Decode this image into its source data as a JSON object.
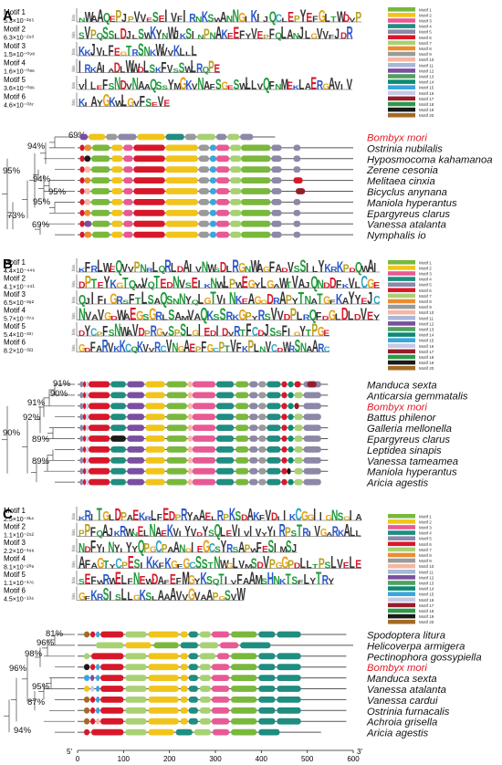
{
  "colors": {
    "m1": "#79b83c",
    "m2": "#f0c41b",
    "m3": "#e85a94",
    "m4": "#1f8d80",
    "m5": "#8d88a8",
    "m6": "#d7182a",
    "m7": "#a8d174",
    "m8": "#eb8d2f",
    "m9": "#9a9a9a",
    "m10": "#f3b7a3",
    "m11": "#a7b8d8",
    "m12": "#7b4fa0",
    "m13": "#4fa05e",
    "m14": "#0c8b73",
    "m15": "#3ba5dc",
    "m16": "#c6c9e6",
    "m17": "#951d2c",
    "m18": "#2c9a4a",
    "m19": "#1a1a1a",
    "m20": "#a36a25",
    "highlight": "#e01b24",
    "backbone": "#555555"
  },
  "axis": {
    "ticks": [
      "0",
      "100",
      "200",
      "300",
      "400",
      "500",
      "600"
    ],
    "prime5": "5'",
    "prime3": "3'"
  },
  "panels": [
    {
      "letter": "A",
      "legend": [
        "Motif 1",
        "Motif 2",
        "Motif 3",
        "Motif 4",
        "Motif 5",
        "Motif 6",
        "Motif 7",
        "Motif 8",
        "Motif 9",
        "Motif 10",
        "Motif 11",
        "Motif 12",
        "Motif 13",
        "Motif 14",
        "Motif 15",
        "Motif 16",
        "Motif 17",
        "Motif 18",
        "Motif 19",
        "Motif 20"
      ],
      "motifs": [
        {
          "name": "Motif 1",
          "evalue": "5.3×10⁻²⁶⁵",
          "logo": "NWAAQEPJPVVESEIVFIRNKSWANNGIKIJQCLEPYEFGLTWDVP",
          "width": 0.62
        },
        {
          "name": "Motif 2",
          "evalue": "6.3×10⁻²⁵³",
          "logo": "SVPQSSLDJLSWKYNWJKSINPNAKEEFYVEPFQLANJLGVVFJDR",
          "width": 0.6
        },
        {
          "name": "Motif 3",
          "evalue": "1.5×10⁻⁰⁹⁸",
          "logo": "KKJVLFEGTRSNKWVVKLLL",
          "width": 0.26
        },
        {
          "name": "Motif 4",
          "evalue": "1.6×10⁻⁰⁸⁶",
          "logo": "IRKAIADLWWDLSKFVSSWLRQPE",
          "width": 0.31
        },
        {
          "name": "Motif 5",
          "evalue": "3.6×10⁻⁰⁸⁶",
          "logo": "VILEFSNDVNAAQSSYMGKVNAFSGESWLLVQFNMEKLAERGAVIV",
          "width": 0.6
        },
        {
          "name": "Motif 6",
          "evalue": "4.6×10⁻⁰³⁷",
          "logo": "KIAYGKWLGVFSEVE",
          "width": 0.2
        }
      ],
      "species": [
        {
          "name": "Bombyx mori",
          "highlight": true
        },
        {
          "name": "Ostrinia nubilalis",
          "highlight": false
        },
        {
          "name": "Hyposmocoma kahamanoa",
          "highlight": false
        },
        {
          "name": "Zerene cesonia",
          "highlight": false
        },
        {
          "name": "Melitaea cinxia",
          "highlight": false
        },
        {
          "name": "Bicyclus anynana",
          "highlight": false
        },
        {
          "name": "Maniola hyperantus",
          "highlight": false
        },
        {
          "name": "Epargyreus clarus",
          "highlight": false
        },
        {
          "name": "Vanessa atalanta",
          "highlight": false
        },
        {
          "name": "Nymphalis io",
          "highlight": false
        }
      ],
      "bootstraps": [
        "69%",
        "94%",
        "95%",
        "94%",
        "95%",
        "95%",
        "73%",
        "69%"
      ]
    },
    {
      "letter": "B",
      "legend": [
        "Motif 1",
        "Motif 2",
        "Motif 3",
        "Motif 4",
        "Motif 5",
        "Motif 6",
        "Motif 7",
        "Motif 8",
        "Motif 9",
        "Motif 10",
        "Motif 11",
        "Motif 12",
        "Motif 13",
        "Motif 14",
        "Motif 15",
        "Motif 16",
        "Motif 17",
        "Motif 18",
        "Motif 19",
        "Motif 20"
      ],
      "motifs": [
        {
          "name": "Motif 1",
          "evalue": "4.4×10⁻⁴⁴⁶",
          "logo": "KFRLWEQVVPNRLQRLDAIVNWSDLRGNWAGFADVSSILYKRKPDQWAI",
          "width": 0.66
        },
        {
          "name": "Motif 2",
          "evalue": "4.1×10⁻⁴⁴¹",
          "logo": "DPTEYKGTQWVQTEDNVSEIKNWLPWEGYLGAWTVAJQNDDFKVLCGE",
          "width": 0.66
        },
        {
          "name": "Motif 3",
          "evalue": "6.5×10⁻³⁸²",
          "logo": "QJIFIGRSFTLSAQSNNYQLGTVINKEAGGDRAPYTNATGFKAYYEJC",
          "width": 0.66
        },
        {
          "name": "Motif 4",
          "evalue": "5.7×10⁻³⁷⁴",
          "logo": "NVAVGDWAEGSGRLSAMVAQKSSRKGPYRSVVDPLRQFDGLDLDVEY",
          "width": 0.66
        },
        {
          "name": "Motif 5",
          "evalue": "5.4×10⁻³³⁷",
          "logo": "DYCPFSNWAVDPRGVSPSLGIEDIDVRTFCDJSSFIGYTPGE",
          "width": 0.55
        },
        {
          "name": "Motif 6",
          "evalue": "8.2×10⁻³²¹",
          "logo": "GDFARVKKCQKVVRCVNGAEPFGCPTVFKPLNVCDWRSNAARC",
          "width": 0.55
        }
      ],
      "species": [
        {
          "name": "Manduca sexta",
          "highlight": false
        },
        {
          "name": "Anticarsia gemmatalis",
          "highlight": false
        },
        {
          "name": "Bombyx mori",
          "highlight": true
        },
        {
          "name": "Battus philenor",
          "highlight": false
        },
        {
          "name": "Galleria mellonella",
          "highlight": false
        },
        {
          "name": "Epargyreus clarus",
          "highlight": false
        },
        {
          "name": "Leptidea sinapis",
          "highlight": false
        },
        {
          "name": "Vanessa tameamea",
          "highlight": false
        },
        {
          "name": "Maniola hyperantus",
          "highlight": false
        },
        {
          "name": "Aricia agestis",
          "highlight": false
        }
      ],
      "bootstraps": [
        "91%",
        "90%",
        "91%",
        "92%",
        "90%",
        "89%",
        "89%"
      ]
    },
    {
      "letter": "C",
      "legend": [
        "Motif 1",
        "Motif 2",
        "Motif 3",
        "Motif 4",
        "Motif 5",
        "Motif 6",
        "Motif 7",
        "Motif 8",
        "Motif 9",
        "Motif 10",
        "Motif 11",
        "Motif 12",
        "Motif 13",
        "Motif 14",
        "Motif 15",
        "Motif 16",
        "Motif 17",
        "Motif 18",
        "Motif 19",
        "Motif 20"
      ],
      "motifs": [
        {
          "name": "Motif 1",
          "evalue": "2.5×10⁻³¹⁴",
          "logo": "KRITGLDPAEKRLFEDPRYAAELRPKSDAKFVDIIKCGGIIGNSGIA",
          "width": 0.62
        },
        {
          "name": "Motif 2",
          "evalue": "1.1×10⁻²⁵²",
          "logo": "PPFQAJKRWNELNAEKVIYVDYSQLEVIVIVYYIRPSTRIVGARKALL",
          "width": 0.62
        },
        {
          "name": "Motif 3",
          "evalue": "2.2×10⁻¹⁹⁶",
          "logo": "NDFYINYIYYQPGCPAANGIEGCSYRSAPWFESIMSJ",
          "width": 0.48
        },
        {
          "name": "Motif 4",
          "evalue": "8.1×10⁻²⁰⁶",
          "logo": "AFAGTYCPESIKKFKGFGCSSTNWGLVMSDVPGGPDLLTPSLVELE",
          "width": 0.62
        },
        {
          "name": "Motif 5",
          "evalue": "1.1×10⁻¹⁷⁶",
          "logo": "SEFWRWELFNEWDAFEFMGYKSQTIVFAAMSHNKTSFLYTRY",
          "width": 0.56
        },
        {
          "name": "Motif 6",
          "evalue": "4.5×10⁻¹³⁴",
          "logo": "GFKRSISLLGKSLAAAVVGVAAPGSVW",
          "width": 0.36
        }
      ],
      "species": [
        {
          "name": "Spodoptera litura",
          "highlight": false
        },
        {
          "name": "Helicoverpa armigera",
          "highlight": false
        },
        {
          "name": "Pectinophora gossypiella",
          "highlight": false
        },
        {
          "name": "Bombyx mori",
          "highlight": true
        },
        {
          "name": "Manduca sexta",
          "highlight": false
        },
        {
          "name": "Vanessa atalanta",
          "highlight": false
        },
        {
          "name": "Vanessa cardui",
          "highlight": false
        },
        {
          "name": "Ostrinia furnacalis",
          "highlight": false
        },
        {
          "name": "Achroia grisella",
          "highlight": false
        },
        {
          "name": "Aricia agestis",
          "highlight": false
        }
      ],
      "bootstraps": [
        "81%",
        "96%",
        "98%",
        "96%",
        "95%",
        "87%",
        "94%"
      ]
    }
  ]
}
